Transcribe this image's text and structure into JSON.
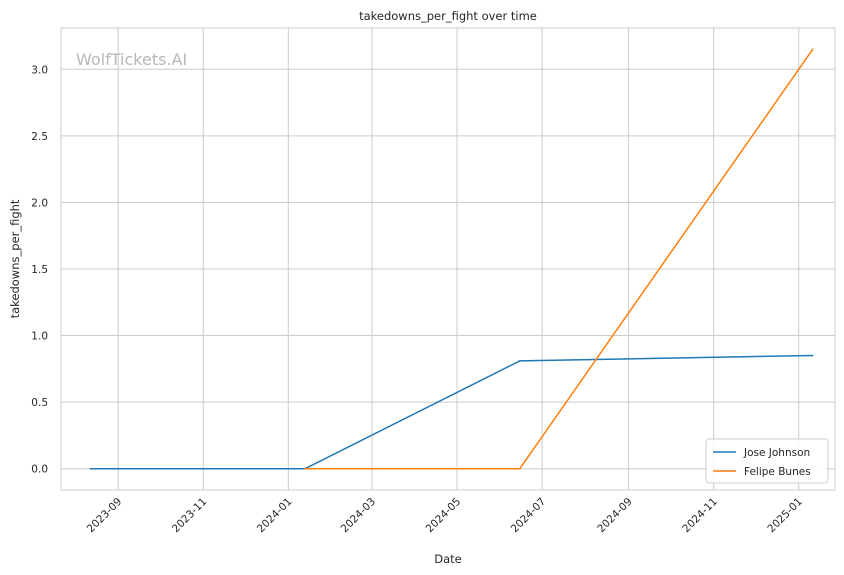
{
  "chart_data": {
    "type": "line",
    "title": "takedowns_per_fight over time",
    "xlabel": "Date",
    "ylabel": "takedowns_per_fight",
    "watermark": "WolfTickets.AI",
    "x_axis": {
      "type": "date",
      "range": [
        "2023-07-22",
        "2025-01-27"
      ],
      "ticks": [
        "2023-09",
        "2023-11",
        "2024-01",
        "2024-03",
        "2024-05",
        "2024-07",
        "2024-09",
        "2024-11",
        "2025-01"
      ]
    },
    "y_axis": {
      "range": [
        -0.16,
        3.31
      ],
      "ticks": [
        0.0,
        0.5,
        1.0,
        1.5,
        2.0,
        2.5,
        3.0
      ],
      "tick_labels": [
        "0.0",
        "0.5",
        "1.0",
        "1.5",
        "2.0",
        "2.5",
        "3.0"
      ]
    },
    "grid": true,
    "legend_position": "bottom-right",
    "series": [
      {
        "name": "Jose Johnson",
        "color": "#1f77b4",
        "points": [
          {
            "x": "2023-08-12",
            "y": 0.0
          },
          {
            "x": "2024-01-13",
            "y": 0.0
          },
          {
            "x": "2024-06-15",
            "y": 0.81
          },
          {
            "x": "2025-01-11",
            "y": 0.85
          }
        ]
      },
      {
        "name": "Felipe Bunes",
        "color": "#ff7f0e",
        "points": [
          {
            "x": "2024-01-13",
            "y": 0.0
          },
          {
            "x": "2024-06-15",
            "y": 0.0
          },
          {
            "x": "2025-01-11",
            "y": 3.15
          }
        ]
      }
    ]
  }
}
